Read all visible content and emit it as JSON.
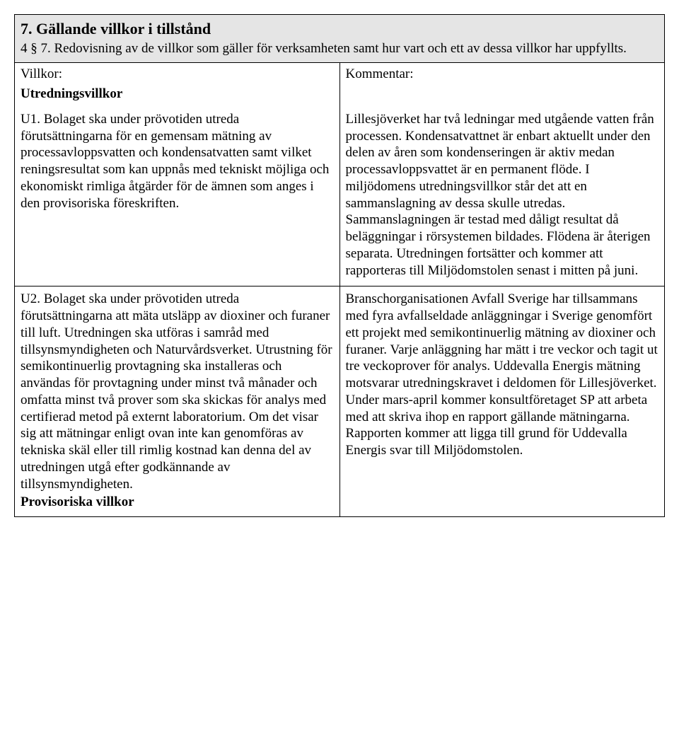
{
  "header": {
    "title": "7. Gällande villkor i tillstånd",
    "subtitle": "4 § 7. Redovisning av de villkor som gäller för verksamheten samt hur vart och ett av dessa villkor har uppfyllts."
  },
  "labels": {
    "left": "Villkor:",
    "right": "Kommentar:"
  },
  "subheading": "Utredningsvillkor",
  "rows": [
    {
      "left": "U1. Bolaget ska under prövotiden utreda förutsättningarna för en gemensam mätning av processavloppsvatten och kondensatvatten samt vilket reningsresultat som kan uppnås med tekniskt möjliga och ekonomiskt rimliga åtgärder för de ämnen som anges i den provisoriska föreskriften.",
      "right": "Lillesjöverket har två ledningar med utgående vatten från processen. Kondensatvattnet är enbart aktuellt under den delen av åren som kondenseringen är aktiv medan processavloppsvattet är en permanent flöde. I miljödomens utredningsvillkor står det att en sammanslagning av dessa skulle utredas. Sammanslagningen är testad med dåligt resultat då beläggningar i rörsystemen bildades. Flödena är återigen separata. Utredningen fortsätter och kommer att rapporteras till Miljödomstolen senast i mitten på juni."
    },
    {
      "left": "U2. Bolaget ska under prövotiden utreda förutsättningarna att mäta utsläpp av dioxiner och furaner till luft. Utredningen ska utföras i samråd med tillsynsmyndigheten och Naturvårdsverket. Utrustning för semikontinuerlig provtagning ska installeras och användas för provtagning under minst två månader och omfatta minst två prover som ska skickas för analys med certifierad metod på externt laboratorium. Om det visar sig att mätningar enligt ovan inte kan genomföras av tekniska skäl eller till rimlig kostnad kan denna del av utredningen utgå efter godkännande av tillsynsmyndigheten.",
      "left_extra": "Provisoriska villkor",
      "right": "Branschorganisationen Avfall Sverige har tillsammans med fyra avfallseldade anläggningar i Sverige genomfört ett projekt med semikontinuerlig mätning av dioxiner och furaner. Varje anläggning har mätt i tre veckor och tagit ut tre veckoprover för analys. Uddevalla Energis mätning motsvarar utredningskravet i deldomen för Lillesjöverket. Under mars-april kommer konsultföretaget SP att arbeta med att skriva ihop en rapport gällande mätningarna. Rapporten kommer att ligga till grund för Uddevalla Energis svar till Miljödomstolen."
    }
  ]
}
